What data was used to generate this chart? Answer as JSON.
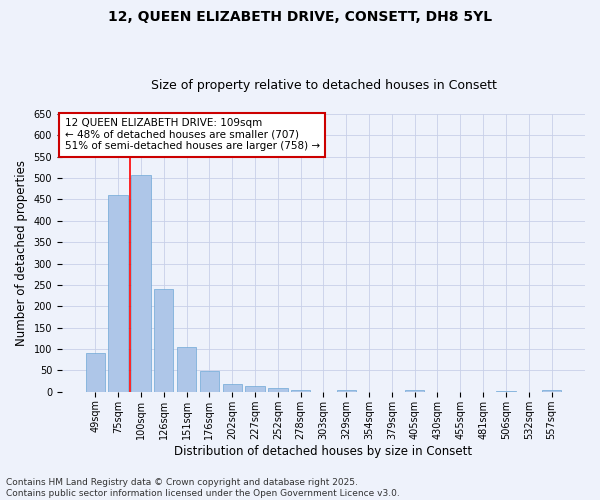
{
  "title_line1": "12, QUEEN ELIZABETH DRIVE, CONSETT, DH8 5YL",
  "title_line2": "Size of property relative to detached houses in Consett",
  "xlabel": "Distribution of detached houses by size in Consett",
  "ylabel": "Number of detached properties",
  "categories": [
    "49sqm",
    "75sqm",
    "100sqm",
    "126sqm",
    "151sqm",
    "176sqm",
    "202sqm",
    "227sqm",
    "252sqm",
    "278sqm",
    "303sqm",
    "329sqm",
    "354sqm",
    "379sqm",
    "405sqm",
    "430sqm",
    "455sqm",
    "481sqm",
    "506sqm",
    "532sqm",
    "557sqm"
  ],
  "values": [
    90,
    460,
    508,
    241,
    104,
    48,
    18,
    14,
    9,
    5,
    0,
    5,
    0,
    0,
    4,
    0,
    0,
    0,
    3,
    0,
    4
  ],
  "bar_color": "#aec6e8",
  "bar_edge_color": "#6fa8d6",
  "red_line_index": 1.5,
  "annotation_text": "12 QUEEN ELIZABETH DRIVE: 109sqm\n← 48% of detached houses are smaller (707)\n51% of semi-detached houses are larger (758) →",
  "annotation_box_color": "#ffffff",
  "annotation_box_edge_color": "#cc0000",
  "footer_line1": "Contains HM Land Registry data © Crown copyright and database right 2025.",
  "footer_line2": "Contains public sector information licensed under the Open Government Licence v3.0.",
  "ylim": [
    0,
    650
  ],
  "yticks": [
    0,
    50,
    100,
    150,
    200,
    250,
    300,
    350,
    400,
    450,
    500,
    550,
    600,
    650
  ],
  "background_color": "#eef2fb",
  "grid_color": "#c8d0e8",
  "title_fontsize": 10,
  "subtitle_fontsize": 9,
  "tick_fontsize": 7,
  "label_fontsize": 8.5,
  "footer_fontsize": 6.5,
  "annotation_fontsize": 7.5
}
